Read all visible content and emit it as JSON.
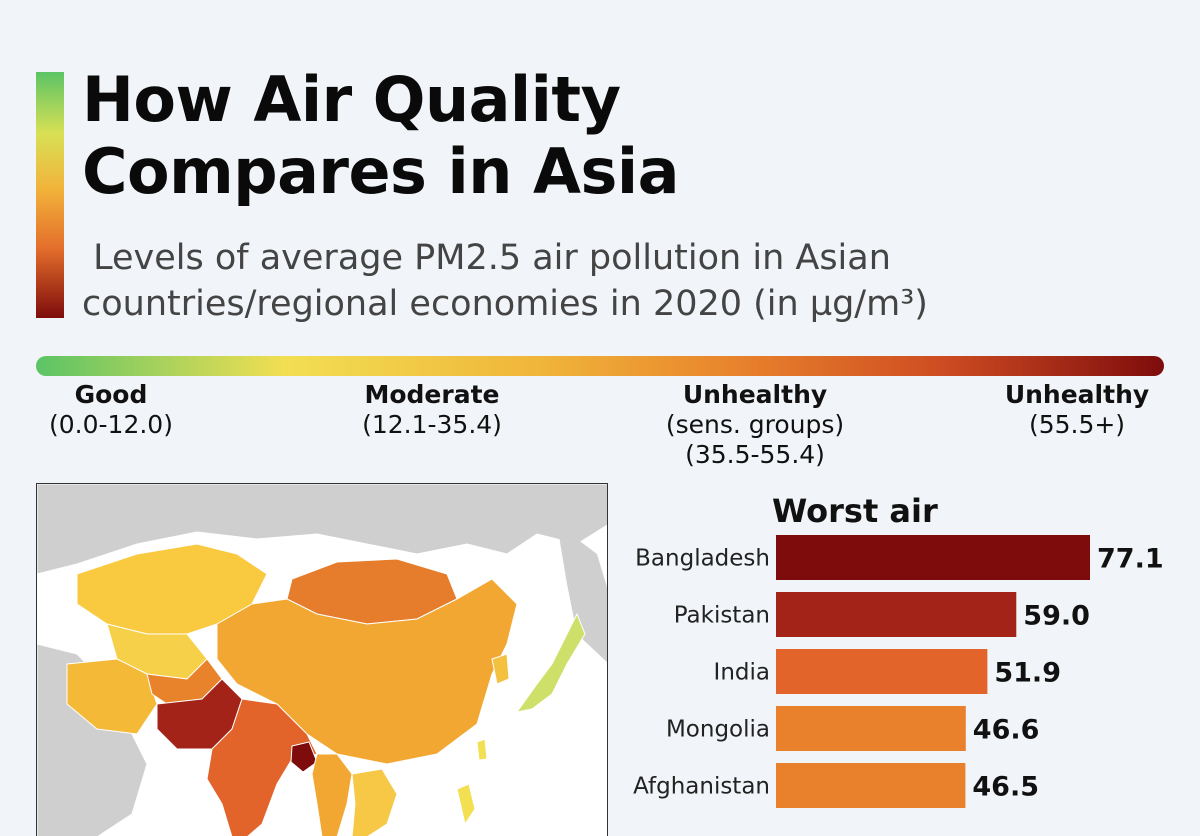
{
  "title": {
    "line1": "How Air Quality",
    "line2": "Compares in Asia"
  },
  "subtitle": {
    "line1": " Levels of average PM2.5 air pollution in Asian",
    "line2": "countries/regional economies in 2020 (in µg/m³)"
  },
  "scale": {
    "good": {
      "name": "Good",
      "range": "(0.0-12.0)"
    },
    "moderate": {
      "name": "Moderate",
      "range": "(12.1-35.4)"
    },
    "unhealthy_sensitive": {
      "name": "Unhealthy",
      "range1": "(sens. groups)",
      "range2": "(35.5-55.4)"
    },
    "unhealthy": {
      "name": "Unhealthy",
      "range": "(55.5+)"
    }
  },
  "colors": {
    "good": "#5cc466",
    "moderate": "#f2c94c",
    "unhealthy_sensitive": "#e8832c",
    "unhealthy": "#7e0c0c",
    "map_background": "#ffffff",
    "no_data": "#cfcfcf"
  },
  "chart_data": {
    "type": "bar",
    "orientation": "horizontal",
    "title": "Worst air",
    "categories": [
      "Bangladesh",
      "Pakistan",
      "India",
      "Mongolia",
      "Afghanistan"
    ],
    "values": [
      77.1,
      59.0,
      51.9,
      46.6,
      46.5
    ],
    "value_labels": [
      "77.1",
      "59.0",
      "51.9",
      "46.6",
      "46.5"
    ],
    "bar_colors": [
      "#7e0c0c",
      "#a32318",
      "#e3642a",
      "#e8802c",
      "#e8802c"
    ],
    "xlim": [
      0,
      77.1
    ],
    "grid": false,
    "legend": "none"
  }
}
